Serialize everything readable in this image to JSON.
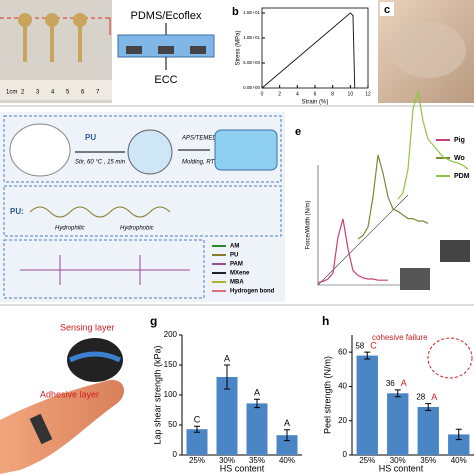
{
  "panels": {
    "a": {
      "ruler": [
        "1cm",
        "2",
        "3",
        "4",
        "5",
        "6",
        "7"
      ],
      "top_layer": "PDMS/Ecoflex",
      "bottom_layer": "ECC"
    },
    "c": {
      "label": "c"
    },
    "d": {
      "pu": "PU",
      "step1": "Stir, 60 °C , 15 min",
      "step2": "APS/TEMED",
      "step3": "Molding, RT",
      "pu2": "PU:",
      "hydrophilic": "Hydrophilic",
      "hydrophobic": "Hydrophobic",
      "legend": [
        "AM",
        "PU",
        "PAM",
        "MXene",
        "MBA",
        "Hydrogen bond"
      ]
    },
    "f": {
      "sensing": "Sensing layer",
      "adhesive": "Adhesive layer"
    }
  },
  "chart_data": [
    {
      "type": "line",
      "panel": "b",
      "ylabel": "Stress (MPa)",
      "xlabel": "Strain (%)",
      "x": [
        0,
        2,
        4,
        6,
        8,
        10,
        10.3,
        10.5
      ],
      "series": [
        {
          "color": "#222222",
          "values": [
            0,
            3,
            6,
            9,
            12,
            15,
            14.5,
            0
          ]
        }
      ],
      "xlim": [
        0,
        12
      ],
      "xticks": [
        0,
        2,
        4,
        6,
        8,
        10,
        12
      ],
      "ylim": [
        0,
        16
      ],
      "yticks": [
        {
          "value": 0,
          "label": "0.0E+00"
        },
        {
          "value": 5,
          "label": "5.0E+00"
        },
        {
          "value": 10,
          "label": "1.0E+01"
        },
        {
          "value": 15,
          "label": "1.5E+01"
        }
      ]
    },
    {
      "type": "line3d",
      "panel": "e",
      "ylabel": "Force/Width (N/m)",
      "ylim": [
        0,
        100
      ],
      "series": [
        {
          "name": "Pig",
          "color": "#c8407a",
          "values": [
            2,
            3,
            5,
            10,
            40,
            55,
            30,
            12,
            8,
            6,
            5,
            5,
            4,
            4,
            4
          ]
        },
        {
          "name": "Wo",
          "color": "#7a8a3a",
          "values": [
            5,
            8,
            15,
            40,
            75,
            60,
            40,
            30,
            28,
            25,
            22,
            22,
            20,
            20,
            18
          ]
        },
        {
          "name": "PDM",
          "color": "#8dc63f",
          "values": [
            5,
            10,
            30,
            80,
            95,
            70,
            55,
            50,
            45,
            40,
            38,
            36,
            35,
            33,
            30
          ]
        }
      ]
    },
    {
      "type": "bar",
      "panel": "g",
      "ylabel": "Lap shear strength (kPa)",
      "xlabel": "HS content",
      "categories": [
        "25%",
        "30%",
        "35%",
        "40%"
      ],
      "values": [
        43,
        130,
        86,
        33
      ],
      "errors": [
        5,
        20,
        7,
        9
      ],
      "letters": [
        "C",
        "A",
        "A",
        "A"
      ],
      "color": "#4a86c5",
      "ylim": [
        0,
        200
      ],
      "yticks": [
        0,
        50,
        100,
        150,
        200
      ]
    },
    {
      "type": "bar",
      "panel": "h",
      "ylabel": "Peel strength (N/m)",
      "xlabel": "HS content",
      "annotation": "cohesive failure",
      "categories": [
        "25%",
        "30%",
        "35%",
        "40%"
      ],
      "values": [
        58,
        36,
        28,
        12
      ],
      "errors": [
        2,
        2,
        2,
        3
      ],
      "letters": [
        "C",
        "A",
        "A",
        null
      ],
      "show_values": [
        true,
        true,
        true,
        false
      ],
      "color": "#4a86c5",
      "ylim": [
        0,
        70
      ],
      "yticks": [
        0,
        20,
        40,
        60
      ]
    }
  ]
}
